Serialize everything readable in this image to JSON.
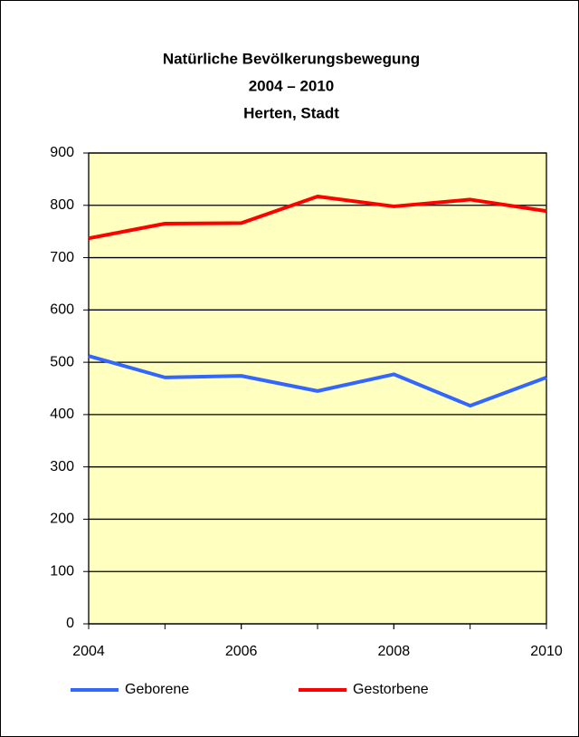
{
  "chart_data": {
    "type": "line",
    "title": [
      "Natürliche Bevölkerungsbewegung",
      "2004 – 2010",
      "Herten, Stadt"
    ],
    "x": [
      2004,
      2005,
      2006,
      2007,
      2008,
      2009,
      2010
    ],
    "series": [
      {
        "name": "Geborene",
        "color": "#3366ff",
        "values": [
          512,
          471,
          474,
          445,
          477,
          417,
          471
        ]
      },
      {
        "name": "Gestorbene",
        "color": "#ff0000",
        "values": [
          737,
          765,
          766,
          817,
          798,
          811,
          789
        ]
      }
    ],
    "xlim": [
      2004,
      2010
    ],
    "xticks": [
      2004,
      2006,
      2008,
      2010
    ],
    "ylim": [
      0,
      900
    ],
    "yticks": [
      0,
      100,
      200,
      300,
      400,
      500,
      600,
      700,
      800,
      900
    ],
    "grid": true,
    "legend": "bottom",
    "plot_background": "#ffffc0"
  }
}
